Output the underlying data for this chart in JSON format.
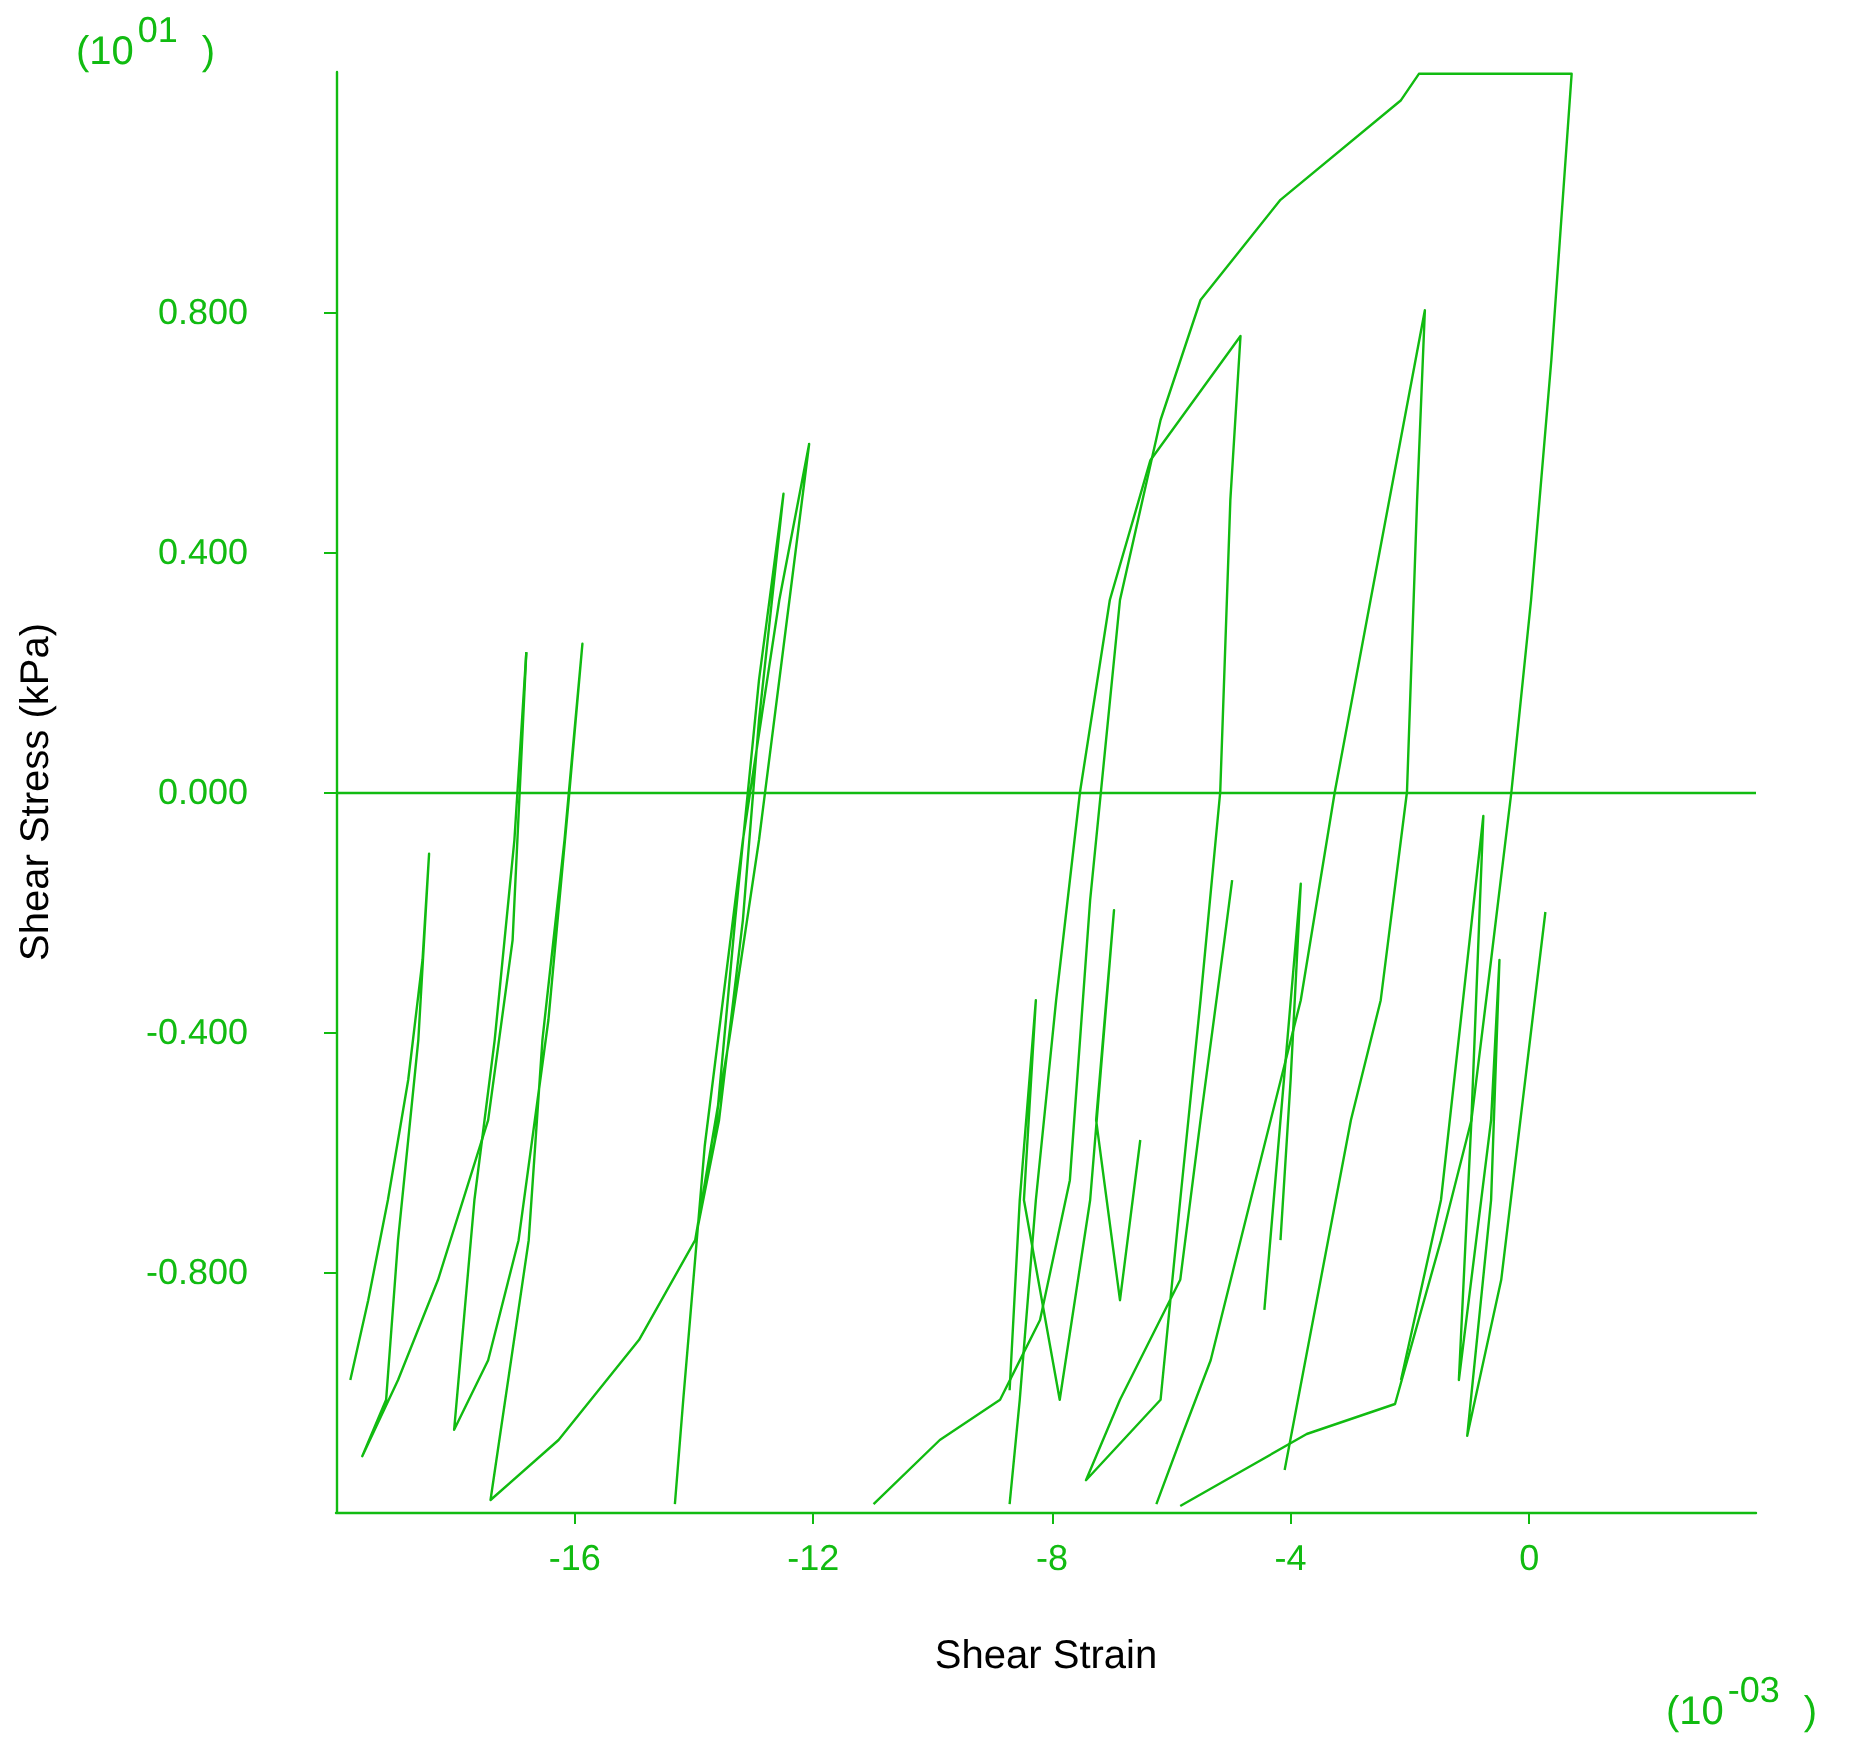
{
  "chart_data": {
    "type": "line",
    "xlabel": "Shear Strain",
    "ylabel": "Shear Stress (kPa)",
    "annotations": [
      "(10$^{01}$)",
      "(10$^{-03}$)"
    ],
    "xlim": [
      -20,
      3.8
    ],
    "xticks": [
      -16,
      -12,
      -8,
      -4,
      0
    ],
    "ylim": [
      -1.2,
      1.2
    ],
    "yticks": [
      {
        "value": -0.8,
        "label": "-0.800"
      },
      {
        "value": -0.4,
        "label": "-0.400"
      },
      {
        "value": 0,
        "label": "0.000"
      },
      {
        "value": 0.4,
        "label": "0.400"
      },
      {
        "value": 0.8,
        "label": "0.800"
      }
    ],
    "grid": false,
    "marker": "none",
    "line_style": "solid",
    "ref_lines": [
      {
        "axis": "y",
        "value": 0,
        "color": "#11bb11"
      }
    ],
    "series": [
      {
        "color": "#11bb11",
        "x": [
          -19.76,
          -19.46,
          -19.13,
          -18.79,
          -18.55,
          -18.44,
          -18.62,
          -18.96,
          -19.16,
          -19.56,
          -18.96,
          -18.29,
          -17.45,
          -17.04,
          -16.81
        ],
        "values": [
          -0.98,
          -0.847,
          -0.68,
          -0.48,
          -0.28,
          -0.103,
          -0.413,
          -0.747,
          -1.013,
          -1.107,
          -0.98,
          -0.813,
          -0.547,
          -0.247,
          0.233
        ]
      },
      {
        "color": "#11bb11",
        "x": [
          -16.81,
          -17.01,
          -17.34,
          -17.68,
          -18.02,
          -17.45,
          -16.94,
          -16.44,
          -16.1,
          -15.87,
          -16.17,
          -16.54,
          -16.77,
          -17.41,
          -16.27,
          -14.92,
          -13.98,
          -13.58,
          -13.18,
          -12.91,
          -12.5,
          -12.91,
          -13.31,
          -13.65,
          -13.98,
          -13.41,
          -12.91,
          -12.4,
          -12.07,
          -12.57,
          -13.18,
          -13.82,
          -14.18,
          -14.32
        ],
        "values": [
          0.233,
          -0.08,
          -0.413,
          -0.68,
          -1.063,
          -0.947,
          -0.747,
          -0.38,
          -0.013,
          0.247,
          -0.08,
          -0.413,
          -0.747,
          -1.18,
          -1.08,
          -0.913,
          -0.747,
          -0.547,
          -0.213,
          0.12,
          0.497,
          0.187,
          -0.213,
          -0.58,
          -0.747,
          -0.413,
          -0.08,
          0.32,
          0.58,
          0.32,
          -0.08,
          -0.59,
          -1.013,
          -1.187
        ]
      },
      {
        "color": "#11bb11",
        "x": [
          -10.99,
          -9.88,
          -8.87,
          -8.2,
          -7.7,
          -7.36,
          -6.86,
          -6.18,
          -5.51,
          -4.17,
          -2.15,
          -1.85,
          0.71,
          0.37,
          0.03,
          -0.3,
          -0.64,
          -0.97,
          -1.48,
          -2.25,
          -3.73,
          -4.84,
          -5.85
        ],
        "values": [
          -1.187,
          -1.08,
          -1.013,
          -0.88,
          -0.647,
          -0.18,
          0.32,
          0.62,
          0.82,
          0.987,
          1.153,
          1.197,
          1.197,
          0.72,
          0.32,
          0,
          -0.28,
          -0.547,
          -0.747,
          -1.02,
          -1.07,
          -1.133,
          -1.19
        ]
      },
      {
        "color": "#11bb11",
        "x": [
          -8.71,
          -8.54,
          -8.27,
          -7.93,
          -7.53,
          -7.03,
          -6.35,
          -4.84,
          -5.01,
          -5.18,
          -5.51,
          -5.85,
          -6.18,
          -7.43,
          -6.86,
          -5.85,
          -5.51,
          -5.11,
          -4.98
        ],
        "values": [
          -1.187,
          -1.013,
          -0.68,
          -0.347,
          0,
          0.32,
          0.553,
          0.76,
          0.487,
          0,
          -0.347,
          -0.68,
          -1.013,
          -1.147,
          -1.013,
          -0.813,
          -0.547,
          -0.247,
          -0.147
        ]
      },
      {
        "color": "#11bb11",
        "x": [
          -6.25,
          -5.85,
          -5.34,
          -4.67,
          -3.83,
          -3.26,
          -2.66,
          -1.75,
          -1.88,
          -2.05,
          -2.49,
          -2.99,
          -4.1
        ],
        "values": [
          -1.187,
          -1.08,
          -0.947,
          -0.68,
          -0.347,
          0,
          0.32,
          0.803,
          0.487,
          0,
          -0.347,
          -0.547,
          -1.13
        ]
      },
      {
        "color": "#11bb11",
        "x": [
          -2.15,
          -1.48,
          -0.77,
          -0.97,
          -1.18,
          -0.64,
          -0.5,
          -0.64,
          -1.04,
          -0.47,
          0.27
        ],
        "values": [
          -0.98,
          -0.68,
          -0.04,
          -0.547,
          -0.98,
          -0.547,
          -0.28,
          -0.68,
          -1.073,
          -0.813,
          -0.2
        ]
      },
      {
        "color": "#11bb11",
        "x": [
          -8.71,
          -8.54,
          -8.27,
          -8.47,
          -7.87,
          -7.36,
          -6.96,
          -7.26,
          -6.86,
          -6.52
        ],
        "values": [
          -0.997,
          -0.68,
          -0.347,
          -0.68,
          -1.013,
          -0.68,
          -0.197,
          -0.547,
          -0.847,
          -0.58
        ]
      },
      {
        "color": "#11bb11",
        "x": [
          -4.44,
          -4.17,
          -3.83,
          -4.0,
          -4.17
        ],
        "values": [
          -0.863,
          -0.547,
          -0.153,
          -0.48,
          -0.747
        ]
      }
    ]
  }
}
